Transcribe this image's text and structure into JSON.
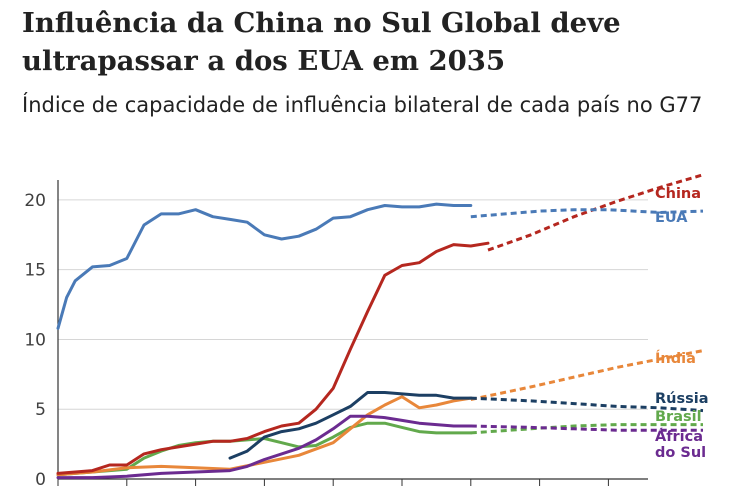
{
  "chart_data": {
    "type": "line",
    "title": "Influência da China no Sul Global deve ultrapassar a dos EUA em 2035",
    "subtitle": "Índice de capacidade de influência bilateral de cada país no G77",
    "xlabel": "",
    "ylabel": "",
    "xlim": [
      1960,
      2035
    ],
    "ylim": [
      0,
      22
    ],
    "yticks": [
      0,
      5,
      10,
      15,
      20
    ],
    "grid": true,
    "legend": "none",
    "projection_start": 2020,
    "series": [
      {
        "name": "China",
        "label_lines": [
          "China"
        ],
        "color": "#b5271f",
        "points": [
          [
            1960,
            0.4
          ],
          [
            1962,
            0.5
          ],
          [
            1964,
            0.6
          ],
          [
            1966,
            1.0
          ],
          [
            1968,
            1.0
          ],
          [
            1970,
            1.8
          ],
          [
            1972,
            2.1
          ],
          [
            1974,
            2.3
          ],
          [
            1976,
            2.5
          ],
          [
            1978,
            2.7
          ],
          [
            1980,
            2.7
          ],
          [
            1982,
            2.9
          ],
          [
            1984,
            3.4
          ],
          [
            1986,
            3.8
          ],
          [
            1988,
            4.0
          ],
          [
            1990,
            5.0
          ],
          [
            1992,
            6.5
          ],
          [
            1994,
            9.3
          ],
          [
            1996,
            12.0
          ],
          [
            1998,
            14.6
          ],
          [
            2000,
            15.3
          ],
          [
            2002,
            15.5
          ],
          [
            2004,
            16.3
          ],
          [
            2006,
            16.8
          ],
          [
            2008,
            16.7
          ],
          [
            2010,
            16.9
          ]
        ],
        "projection": [
          [
            2010,
            16.4
          ],
          [
            2015,
            17.5
          ],
          [
            2020,
            18.8
          ],
          [
            2025,
            19.9
          ],
          [
            2030,
            20.9
          ],
          [
            2035,
            21.8
          ]
        ]
      },
      {
        "name": "EUA",
        "label_lines": [
          "EUA"
        ],
        "color": "#4a7ab7",
        "points": [
          [
            1960,
            10.8
          ],
          [
            1961,
            13.0
          ],
          [
            1962,
            14.2
          ],
          [
            1964,
            15.2
          ],
          [
            1966,
            15.3
          ],
          [
            1968,
            15.8
          ],
          [
            1970,
            18.2
          ],
          [
            1972,
            19.0
          ],
          [
            1974,
            19.0
          ],
          [
            1976,
            19.3
          ],
          [
            1978,
            18.8
          ],
          [
            1980,
            18.6
          ],
          [
            1982,
            18.4
          ],
          [
            1984,
            17.5
          ],
          [
            1986,
            17.2
          ],
          [
            1988,
            17.4
          ],
          [
            1990,
            17.9
          ],
          [
            1992,
            18.7
          ],
          [
            1994,
            18.8
          ],
          [
            1996,
            19.3
          ],
          [
            1998,
            19.6
          ],
          [
            2000,
            19.5
          ],
          [
            2002,
            19.5
          ],
          [
            2004,
            19.7
          ],
          [
            2006,
            19.6
          ],
          [
            2008,
            19.6
          ]
        ],
        "projection": [
          [
            2008,
            18.8
          ],
          [
            2012,
            19.0
          ],
          [
            2016,
            19.2
          ],
          [
            2020,
            19.3
          ],
          [
            2024,
            19.3
          ],
          [
            2030,
            19.1
          ],
          [
            2035,
            19.2
          ]
        ]
      },
      {
        "name": "Índia",
        "label_lines": [
          "Índia"
        ],
        "color": "#e8873a",
        "points": [
          [
            1960,
            0.3
          ],
          [
            1964,
            0.5
          ],
          [
            1968,
            0.8
          ],
          [
            1972,
            0.9
          ],
          [
            1976,
            0.8
          ],
          [
            1980,
            0.7
          ],
          [
            1984,
            1.2
          ],
          [
            1988,
            1.7
          ],
          [
            1992,
            2.6
          ],
          [
            1996,
            4.6
          ],
          [
            1998,
            5.3
          ],
          [
            2000,
            5.9
          ],
          [
            2002,
            5.1
          ],
          [
            2004,
            5.3
          ],
          [
            2006,
            5.6
          ],
          [
            2008,
            5.8
          ]
        ],
        "projection": [
          [
            2008,
            5.7
          ],
          [
            2015,
            6.6
          ],
          [
            2020,
            7.3
          ],
          [
            2025,
            8.0
          ],
          [
            2030,
            8.6
          ],
          [
            2035,
            9.2
          ]
        ]
      },
      {
        "name": "Rússia",
        "label_lines": [
          "Rússia"
        ],
        "color": "#1c3f63",
        "points": [
          [
            1980,
            1.5
          ],
          [
            1982,
            2.0
          ],
          [
            1984,
            3.0
          ],
          [
            1986,
            3.4
          ],
          [
            1988,
            3.6
          ],
          [
            1990,
            4.0
          ],
          [
            1992,
            4.6
          ],
          [
            1994,
            5.2
          ],
          [
            1996,
            6.2
          ],
          [
            1998,
            6.2
          ],
          [
            2000,
            6.1
          ],
          [
            2002,
            6.0
          ],
          [
            2004,
            6.0
          ],
          [
            2006,
            5.8
          ],
          [
            2008,
            5.8
          ]
        ],
        "projection": [
          [
            2008,
            5.8
          ],
          [
            2015,
            5.6
          ],
          [
            2020,
            5.4
          ],
          [
            2025,
            5.2
          ],
          [
            2030,
            5.1
          ],
          [
            2035,
            4.9
          ]
        ]
      },
      {
        "name": "Brasil",
        "label_lines": [
          "Brasil"
        ],
        "color": "#62a94c",
        "points": [
          [
            1960,
            0.3
          ],
          [
            1964,
            0.5
          ],
          [
            1968,
            0.7
          ],
          [
            1970,
            1.5
          ],
          [
            1972,
            2.0
          ],
          [
            1974,
            2.4
          ],
          [
            1976,
            2.6
          ],
          [
            1978,
            2.7
          ],
          [
            1980,
            2.7
          ],
          [
            1982,
            2.8
          ],
          [
            1984,
            2.9
          ],
          [
            1986,
            2.6
          ],
          [
            1988,
            2.3
          ],
          [
            1990,
            2.4
          ],
          [
            1992,
            3.0
          ],
          [
            1994,
            3.7
          ],
          [
            1996,
            4.0
          ],
          [
            1998,
            4.0
          ],
          [
            2000,
            3.7
          ],
          [
            2002,
            3.4
          ],
          [
            2004,
            3.3
          ],
          [
            2006,
            3.3
          ],
          [
            2008,
            3.3
          ]
        ],
        "projection": [
          [
            2008,
            3.3
          ],
          [
            2015,
            3.6
          ],
          [
            2020,
            3.8
          ],
          [
            2025,
            3.9
          ],
          [
            2030,
            3.9
          ],
          [
            2035,
            3.9
          ]
        ]
      },
      {
        "name": "África do Sul",
        "label_lines": [
          "África",
          "do Sul"
        ],
        "color": "#6b2b90",
        "points": [
          [
            1960,
            0.1
          ],
          [
            1964,
            0.1
          ],
          [
            1968,
            0.2
          ],
          [
            1972,
            0.4
          ],
          [
            1976,
            0.5
          ],
          [
            1980,
            0.6
          ],
          [
            1982,
            0.9
          ],
          [
            1984,
            1.4
          ],
          [
            1986,
            1.8
          ],
          [
            1988,
            2.2
          ],
          [
            1990,
            2.8
          ],
          [
            1992,
            3.6
          ],
          [
            1994,
            4.5
          ],
          [
            1996,
            4.5
          ],
          [
            1998,
            4.4
          ],
          [
            2000,
            4.2
          ],
          [
            2002,
            4.0
          ],
          [
            2004,
            3.9
          ],
          [
            2006,
            3.8
          ],
          [
            2008,
            3.8
          ]
        ],
        "projection": [
          [
            2008,
            3.8
          ],
          [
            2015,
            3.7
          ],
          [
            2020,
            3.6
          ],
          [
            2025,
            3.5
          ],
          [
            2030,
            3.5
          ],
          [
            2035,
            3.5
          ]
        ]
      }
    ]
  }
}
